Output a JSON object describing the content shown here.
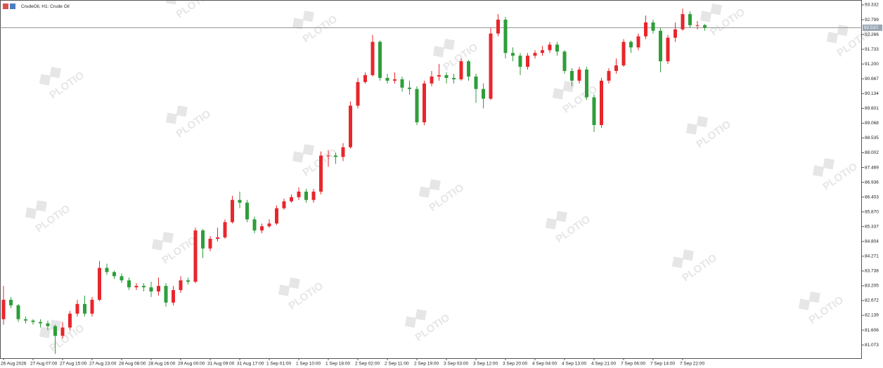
{
  "chart_data": {
    "type": "candlestick",
    "title": "CrudeOil, H1:  Crude Oil",
    "watermark": "PLOTIO",
    "up_color": "#e8262b",
    "down_color": "#2e9e3a",
    "ylim": [
      80.595,
      93.509
    ],
    "yticks": [
      93.332,
      92.799,
      92.266,
      91.733,
      {
        "value": 91.2,
        "label": "91.200"
      },
      90.667,
      90.134,
      89.601,
      89.068,
      88.535,
      88.002,
      87.469,
      86.936,
      86.403,
      {
        "value": 85.87,
        "label": "85.870"
      },
      85.337,
      84.804,
      84.271,
      83.738,
      83.205,
      82.672,
      82.139,
      81.606,
      81.073
    ],
    "price_line": {
      "value": 92.51,
      "label": "92.510"
    },
    "categories": [
      "26 Aug 2026",
      null,
      null,
      null,
      "27 Aug 07:00",
      null,
      null,
      null,
      "27 Aug 15:00",
      null,
      null,
      null,
      "27 Aug 23:00",
      null,
      null,
      null,
      "28 Aug 08:00",
      null,
      null,
      null,
      "28 Aug 16:00",
      null,
      null,
      null,
      "29 Aug 00:00",
      null,
      null,
      null,
      "31 Aug 09:00",
      null,
      null,
      null,
      "31 Aug 17:00",
      null,
      null,
      null,
      "1 Sep 01:00",
      null,
      null,
      null,
      "1 Sep 10:00",
      null,
      null,
      null,
      "1 Sep 18:00",
      null,
      null,
      null,
      "2 Sep 02:00",
      null,
      null,
      null,
      "2 Sep 11:00",
      null,
      null,
      null,
      "2 Sep 19:00",
      null,
      null,
      null,
      "3 Sep 03:00",
      null,
      null,
      null,
      "3 Sep 12:00",
      null,
      null,
      null,
      "3 Sep 20:00",
      null,
      null,
      null,
      "4 Sep 04:00",
      null,
      null,
      null,
      "4 Sep 13:00",
      null,
      null,
      null,
      "4 Sep 21:00",
      null,
      null,
      null,
      "7 Sep 06:00",
      null,
      null,
      null,
      "7 Sep 14:00",
      null,
      null,
      null,
      "7 Sep 22:00",
      null,
      null,
      null
    ],
    "open": [
      82.0,
      82.7,
      82.5,
      82.0,
      81.95,
      81.9,
      81.85,
      81.75,
      81.4,
      81.7,
      82.2,
      82.55,
      82.2,
      82.7,
      83.85,
      83.7,
      83.55,
      83.4,
      83.15,
      83.2,
      83.15,
      83.0,
      83.2,
      82.6,
      83.05,
      83.4,
      83.35,
      85.2,
      84.55,
      84.9,
      84.95,
      85.5,
      86.3,
      86.2,
      85.6,
      85.2,
      85.35,
      85.45,
      86.0,
      86.25,
      86.4,
      86.6,
      86.3,
      86.6,
      87.9,
      87.9,
      87.85,
      88.2,
      89.7,
      90.55,
      90.8,
      92.0,
      90.7,
      90.6,
      90.65,
      90.35,
      90.3,
      89.1,
      90.5,
      90.75,
      90.8,
      90.7,
      90.65,
      91.3,
      90.75,
      90.3,
      89.95,
      92.3,
      92.8,
      91.6,
      91.5,
      91.1,
      91.5,
      91.6,
      91.7,
      91.9,
      91.65,
      90.95,
      90.6,
      91.0,
      90.0,
      89.0,
      90.6,
      90.95,
      91.15,
      92.0,
      91.8,
      92.2,
      92.7,
      92.4,
      91.3,
      92.15,
      92.45,
      93.0,
      92.6,
      92.6
    ],
    "high": [
      83.2,
      82.8,
      82.55,
      82.1,
      82.0,
      82.0,
      81.95,
      81.8,
      81.9,
      82.3,
      82.7,
      82.85,
      82.8,
      84.1,
      84.0,
      83.75,
      83.65,
      83.5,
      83.3,
      83.3,
      83.35,
      83.5,
      83.3,
      83.2,
      83.55,
      83.5,
      85.3,
      85.25,
      85.0,
      85.3,
      85.6,
      86.45,
      86.6,
      86.3,
      85.7,
      85.45,
      85.6,
      86.1,
      86.35,
      86.5,
      86.75,
      86.7,
      86.7,
      88.05,
      88.1,
      88.0,
      88.35,
      89.85,
      90.7,
      90.9,
      92.25,
      92.05,
      90.85,
      90.9,
      90.75,
      90.6,
      90.4,
      90.6,
      90.95,
      91.2,
      90.9,
      90.85,
      91.4,
      91.35,
      90.85,
      90.5,
      92.5,
      93.0,
      92.9,
      91.8,
      91.6,
      91.6,
      91.7,
      91.85,
      92.0,
      92.0,
      91.7,
      91.05,
      91.1,
      91.1,
      90.1,
      90.7,
      91.05,
      91.4,
      92.1,
      92.05,
      92.3,
      92.95,
      92.8,
      92.5,
      92.25,
      92.7,
      93.2,
      93.1,
      92.75,
      92.65
    ],
    "low": [
      81.8,
      82.4,
      81.9,
      81.85,
      81.8,
      81.7,
      81.6,
      80.75,
      81.3,
      81.6,
      82.1,
      82.1,
      82.1,
      82.65,
      83.6,
      83.45,
      83.3,
      83.05,
      83.05,
      83.0,
      82.8,
      82.85,
      82.45,
      82.5,
      82.95,
      83.25,
      83.3,
      84.2,
      84.45,
      84.8,
      84.9,
      85.45,
      86.0,
      85.5,
      85.1,
      85.1,
      85.3,
      85.4,
      85.95,
      86.2,
      86.3,
      86.2,
      86.2,
      86.5,
      87.5,
      87.6,
      87.7,
      88.15,
      89.6,
      90.5,
      90.75,
      90.6,
      90.5,
      90.5,
      90.2,
      90.1,
      89.0,
      89.0,
      90.4,
      90.6,
      90.5,
      90.5,
      90.6,
      90.6,
      89.8,
      89.6,
      89.9,
      92.2,
      91.4,
      91.3,
      90.8,
      91.0,
      91.4,
      91.5,
      91.6,
      91.5,
      90.85,
      90.4,
      90.5,
      89.9,
      88.75,
      88.9,
      90.5,
      90.85,
      91.1,
      91.6,
      91.7,
      92.1,
      92.3,
      90.9,
      91.2,
      92.0,
      92.4,
      92.5,
      92.45,
      92.4
    ],
    "close": [
      82.7,
      82.5,
      82.0,
      81.95,
      81.9,
      81.85,
      81.75,
      81.4,
      81.7,
      82.2,
      82.55,
      82.2,
      82.7,
      83.85,
      83.7,
      83.55,
      83.4,
      83.15,
      83.2,
      83.15,
      83.0,
      83.2,
      82.6,
      83.05,
      83.4,
      83.35,
      85.2,
      84.55,
      84.9,
      84.95,
      85.5,
      86.3,
      86.2,
      85.6,
      85.2,
      85.35,
      85.45,
      86.0,
      86.25,
      86.4,
      86.6,
      86.3,
      86.6,
      87.9,
      87.9,
      87.85,
      88.2,
      89.7,
      90.55,
      90.8,
      92.0,
      90.7,
      90.6,
      90.65,
      90.35,
      90.3,
      89.1,
      90.5,
      90.75,
      90.8,
      90.7,
      90.65,
      91.3,
      90.75,
      90.3,
      89.95,
      92.3,
      92.8,
      91.6,
      91.5,
      91.1,
      91.5,
      91.6,
      91.7,
      91.9,
      91.65,
      90.95,
      90.6,
      91.0,
      90.0,
      89.0,
      90.6,
      90.95,
      91.15,
      92.0,
      91.8,
      92.2,
      92.7,
      92.4,
      91.3,
      92.15,
      92.45,
      93.0,
      92.6,
      92.6,
      92.51
    ]
  }
}
